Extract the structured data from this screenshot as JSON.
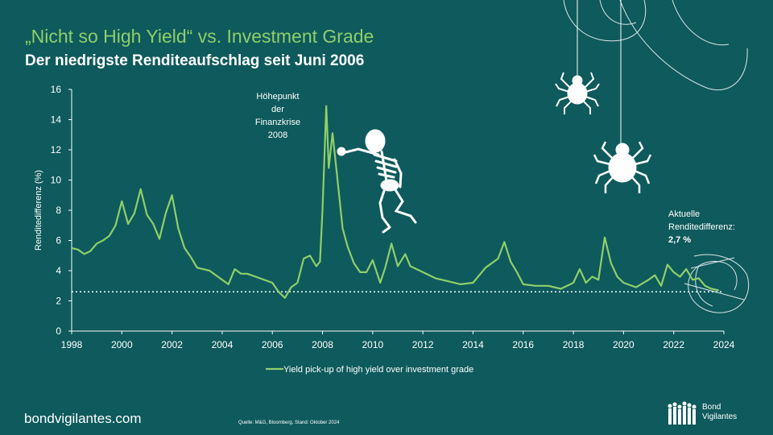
{
  "header": {
    "title": "„Nicht so High Yield“ vs. Investment Grade",
    "subtitle": "Der niedrigste Renditeaufschlag seit Juni 2006"
  },
  "footer": {
    "site": "bondvigilantes.com",
    "source": "Quelle: M&G, Bloomberg, Stand: Oktober 2024",
    "logo_line1": "Bond",
    "logo_line2": "Vigilantes"
  },
  "colors": {
    "background": "#0e5a5c",
    "series": "#8fcf6a",
    "text": "#ffffff"
  },
  "decor": [
    "skeleton-icon",
    "spider-icon",
    "spider-icon",
    "cobweb-icon"
  ],
  "chart_data": {
    "type": "line",
    "title": "",
    "ylabel": "Renditedifferenz (%)",
    "xlabel": "",
    "xlim": [
      1998,
      2024
    ],
    "ylim": [
      0,
      16
    ],
    "yticks": [
      0,
      2,
      4,
      6,
      8,
      10,
      12,
      14,
      16
    ],
    "xticks": [
      1998,
      2000,
      2002,
      2004,
      2006,
      2008,
      2010,
      2012,
      2014,
      2016,
      2018,
      2020,
      2022,
      2024
    ],
    "grid": false,
    "legend": "bottom-center",
    "reference_line": {
      "y": 2.6,
      "style": "dotted"
    },
    "series": [
      {
        "name": "Yield pick-up of high yield over investment grade",
        "x": [
          1998.0,
          1998.25,
          1998.5,
          1998.75,
          1999.0,
          1999.25,
          1999.5,
          1999.75,
          2000.0,
          2000.25,
          2000.5,
          2000.75,
          2001.0,
          2001.25,
          2001.5,
          2001.75,
          2002.0,
          2002.25,
          2002.5,
          2002.75,
          2003.0,
          2003.5,
          2004.0,
          2004.25,
          2004.5,
          2004.75,
          2005.0,
          2005.5,
          2006.0,
          2006.25,
          2006.5,
          2006.75,
          2007.0,
          2007.25,
          2007.5,
          2007.75,
          2007.9,
          2008.0,
          2008.15,
          2008.25,
          2008.4,
          2008.6,
          2008.8,
          2009.0,
          2009.25,
          2009.5,
          2009.75,
          2010.0,
          2010.3,
          2010.5,
          2010.75,
          2011.0,
          2011.3,
          2011.5,
          2011.75,
          2012.0,
          2012.5,
          2013.0,
          2013.5,
          2014.0,
          2014.5,
          2015.0,
          2015.25,
          2015.5,
          2015.75,
          2016.0,
          2016.5,
          2017.0,
          2017.5,
          2018.0,
          2018.25,
          2018.5,
          2018.75,
          2019.0,
          2019.25,
          2019.5,
          2019.75,
          2020.0,
          2020.5,
          2021.0,
          2021.25,
          2021.5,
          2021.75,
          2022.0,
          2022.25,
          2022.5,
          2022.75,
          2023.0,
          2023.25,
          2023.5,
          2023.8
        ],
        "values": [
          5.5,
          5.4,
          5.1,
          5.3,
          5.8,
          6.0,
          6.3,
          7.0,
          8.6,
          7.1,
          7.8,
          9.4,
          7.7,
          7.1,
          6.1,
          7.8,
          9.0,
          6.8,
          5.5,
          4.9,
          4.2,
          4.0,
          3.4,
          3.1,
          4.1,
          3.8,
          3.8,
          3.5,
          3.2,
          2.6,
          2.2,
          2.9,
          3.2,
          4.8,
          5.0,
          4.3,
          4.6,
          8.0,
          14.9,
          10.8,
          13.1,
          10.0,
          6.8,
          5.6,
          4.5,
          3.9,
          3.9,
          4.7,
          3.2,
          4.2,
          5.8,
          4.3,
          5.1,
          4.3,
          4.1,
          3.9,
          3.5,
          3.3,
          3.1,
          3.2,
          4.2,
          4.8,
          5.9,
          4.6,
          3.9,
          3.1,
          3.0,
          3.0,
          2.8,
          3.2,
          4.1,
          3.2,
          3.6,
          3.4,
          6.2,
          4.5,
          3.6,
          3.2,
          2.9,
          3.4,
          3.7,
          3.0,
          4.4,
          3.9,
          3.6,
          4.1,
          3.4,
          3.5,
          3.0,
          2.8,
          2.7
        ]
      }
    ],
    "annotations": [
      {
        "text": "Höhepunkt der Finanzkrise 2008",
        "lines": [
          "Höhepunkt",
          "der",
          "Finanzkrise",
          "2008"
        ],
        "x": 2007.9,
        "y": 14.9
      },
      {
        "text": "Aktuelle Renditedifferenz: 2,7 %",
        "lines": [
          "Aktuelle",
          "Renditedifferenz:",
          "2,7 %"
        ],
        "x": 2023.8,
        "y": 2.7
      }
    ]
  }
}
